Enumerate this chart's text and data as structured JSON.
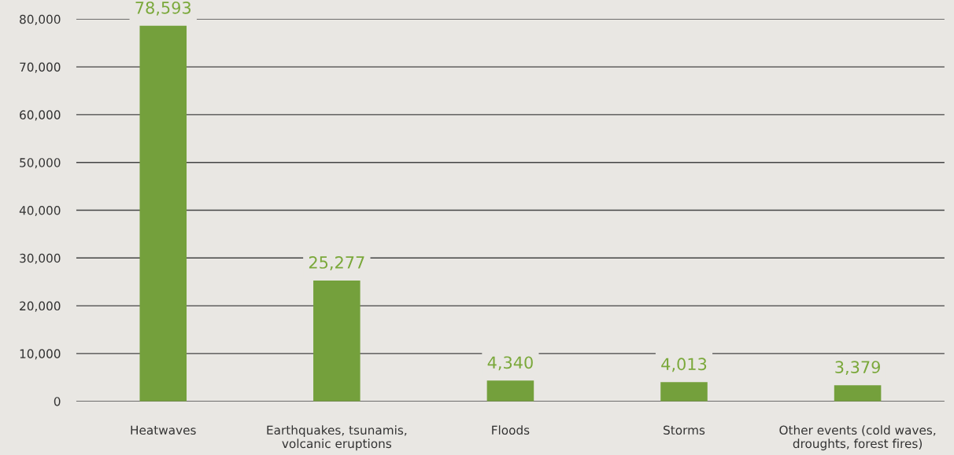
{
  "chart_data": {
    "type": "bar",
    "categories": [
      "Heatwaves",
      "Earthquakes, tsunamis,\nvolcanic eruptions",
      "Floods",
      "Storms",
      "Other events (cold waves,\ndroughts, forest fires)"
    ],
    "values": [
      78593,
      25277,
      4340,
      4013,
      3379
    ],
    "color": "#74a03c",
    "value_labels": [
      "78,593",
      "25,277",
      "4,340",
      "4,013",
      "3,379"
    ],
    "ylim": [
      0,
      80000
    ],
    "yticks": [
      {
        "value": 0,
        "label": "0"
      },
      {
        "value": 10000,
        "label": "10,000"
      },
      {
        "value": 20000,
        "label": "20,000"
      },
      {
        "value": 30000,
        "label": "30,000"
      },
      {
        "value": 40000,
        "label": "40,000"
      },
      {
        "value": 50000,
        "label": "50,000"
      },
      {
        "value": 60000,
        "label": "60,000"
      },
      {
        "value": 70000,
        "label": "70,000"
      },
      {
        "value": 80000,
        "label": "80,000"
      }
    ],
    "grid": "y"
  }
}
